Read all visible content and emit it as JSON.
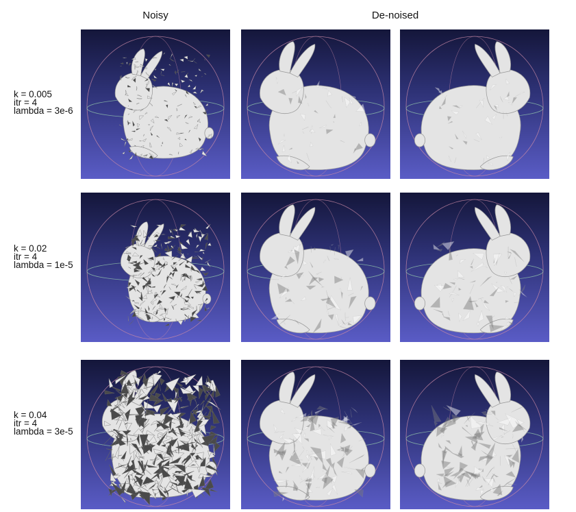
{
  "headers": {
    "noisy": "Noisy",
    "denoised": "De-noised"
  },
  "rows": [
    {
      "k": "k = 0.005",
      "itr": "itr = 4",
      "lambda": "lambda = 3e-6",
      "noise_level": "low"
    },
    {
      "k": "k = 0.02",
      "itr": "itr = 4",
      "lambda": "lambda = 1e-5",
      "noise_level": "medium"
    },
    {
      "k": "k = 0.04",
      "itr": "itr = 4",
      "lambda": "lambda = 3e-5",
      "noise_level": "high"
    }
  ],
  "colors": {
    "background_top": "#14163a",
    "background_bottom": "#5a5cc6",
    "mesh": "#e4e4e4",
    "mesh_shadow": "#7a7a7a",
    "trackball_pink": "#c98aa6",
    "trackball_green": "#9fd9b0"
  }
}
